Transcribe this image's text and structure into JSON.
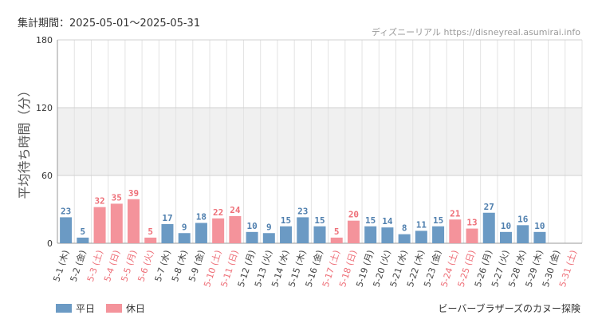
{
  "header": {
    "period": "集計期間：2025-05-01～2025-05-31",
    "source": "ディズニーリアル https://disneyreal.asumirai.info"
  },
  "footer": {
    "caption": "ビーバーブラザーズのカヌー探険"
  },
  "colors": {
    "weekday": "#6b9ac4",
    "holiday": "#f4939b",
    "weekday_text": "#4f7fae",
    "holiday_text": "#ee6f78",
    "band": "#f0f0f0",
    "grid": "#e3e3e3"
  },
  "chart_data": {
    "type": "bar",
    "ylabel": "平均待ち時間（分）",
    "ylim": [
      0,
      180
    ],
    "yticks": [
      "0",
      "60",
      "120",
      "180"
    ],
    "shaded_band": [
      60,
      120
    ],
    "legend": [
      {
        "key": "weekday",
        "label": "平日"
      },
      {
        "key": "holiday",
        "label": "休日"
      }
    ],
    "categories": [
      "5-1 (木)",
      "5-2 (金)",
      "5-3 (土)",
      "5-4 (日)",
      "5-5 (月)",
      "5-6 (火)",
      "5-7 (水)",
      "5-8 (木)",
      "5-9 (金)",
      "5-10 (土)",
      "5-11 (日)",
      "5-12 (月)",
      "5-13 (火)",
      "5-14 (水)",
      "5-15 (木)",
      "5-16 (金)",
      "5-17 (土)",
      "5-18 (日)",
      "5-19 (月)",
      "5-20 (火)",
      "5-21 (水)",
      "5-22 (木)",
      "5-23 (金)",
      "5-24 (土)",
      "5-25 (日)",
      "5-26 (月)",
      "5-27 (火)",
      "5-28 (水)",
      "5-29 (木)",
      "5-30 (金)",
      "5-31 (土)"
    ],
    "values": [
      23,
      5,
      32,
      35,
      39,
      5,
      17,
      9,
      18,
      22,
      24,
      10,
      9,
      15,
      23,
      15,
      5,
      20,
      15,
      14,
      8,
      11,
      15,
      21,
      13,
      27,
      10,
      16,
      10,
      null,
      null
    ],
    "value_labels": [
      "23",
      "5",
      "32",
      "35",
      "39",
      "5",
      "17",
      "9",
      "18",
      "22",
      "24",
      "10",
      "9",
      "15",
      "23",
      "15",
      "5",
      "20",
      "15",
      "14",
      "8",
      "11",
      "15",
      "21",
      "13",
      "27",
      "10",
      "16",
      "10",
      "",
      ""
    ],
    "holiday": [
      false,
      false,
      true,
      true,
      true,
      true,
      false,
      false,
      false,
      true,
      true,
      false,
      false,
      false,
      false,
      false,
      true,
      true,
      false,
      false,
      false,
      false,
      false,
      true,
      true,
      false,
      false,
      false,
      false,
      false,
      true
    ]
  }
}
